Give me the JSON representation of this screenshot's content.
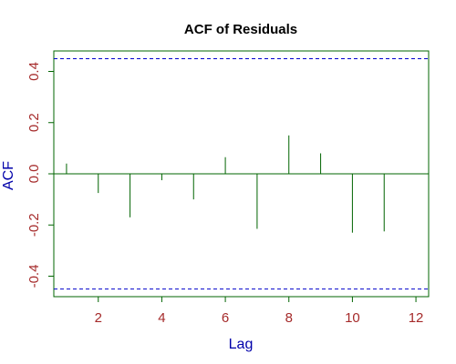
{
  "chart_data": {
    "type": "bar",
    "title": "ACF of Residuals",
    "xlabel": "Lag",
    "ylabel": "ACF",
    "xlim": [
      0.6,
      12.4
    ],
    "ylim": [
      -0.48,
      0.48
    ],
    "x_ticks": [
      2,
      4,
      6,
      8,
      10,
      12
    ],
    "y_ticks": [
      -0.4,
      -0.2,
      0.0,
      0.2,
      0.4
    ],
    "x": [
      1,
      2,
      3,
      4,
      5,
      6,
      7,
      8,
      9,
      10,
      11
    ],
    "values": [
      0.04,
      -0.075,
      -0.17,
      -0.025,
      -0.1,
      0.065,
      -0.215,
      0.15,
      0.08,
      -0.23,
      -0.225
    ],
    "confidence_bounds": [
      0.45,
      -0.45
    ],
    "grid": false,
    "colors": {
      "bars": "#006400",
      "zero_line": "#006400",
      "frame": "#006400",
      "bounds": "#0000cc",
      "tick_labels": "#a52a2a",
      "axis_labels": "#0000aa"
    }
  }
}
